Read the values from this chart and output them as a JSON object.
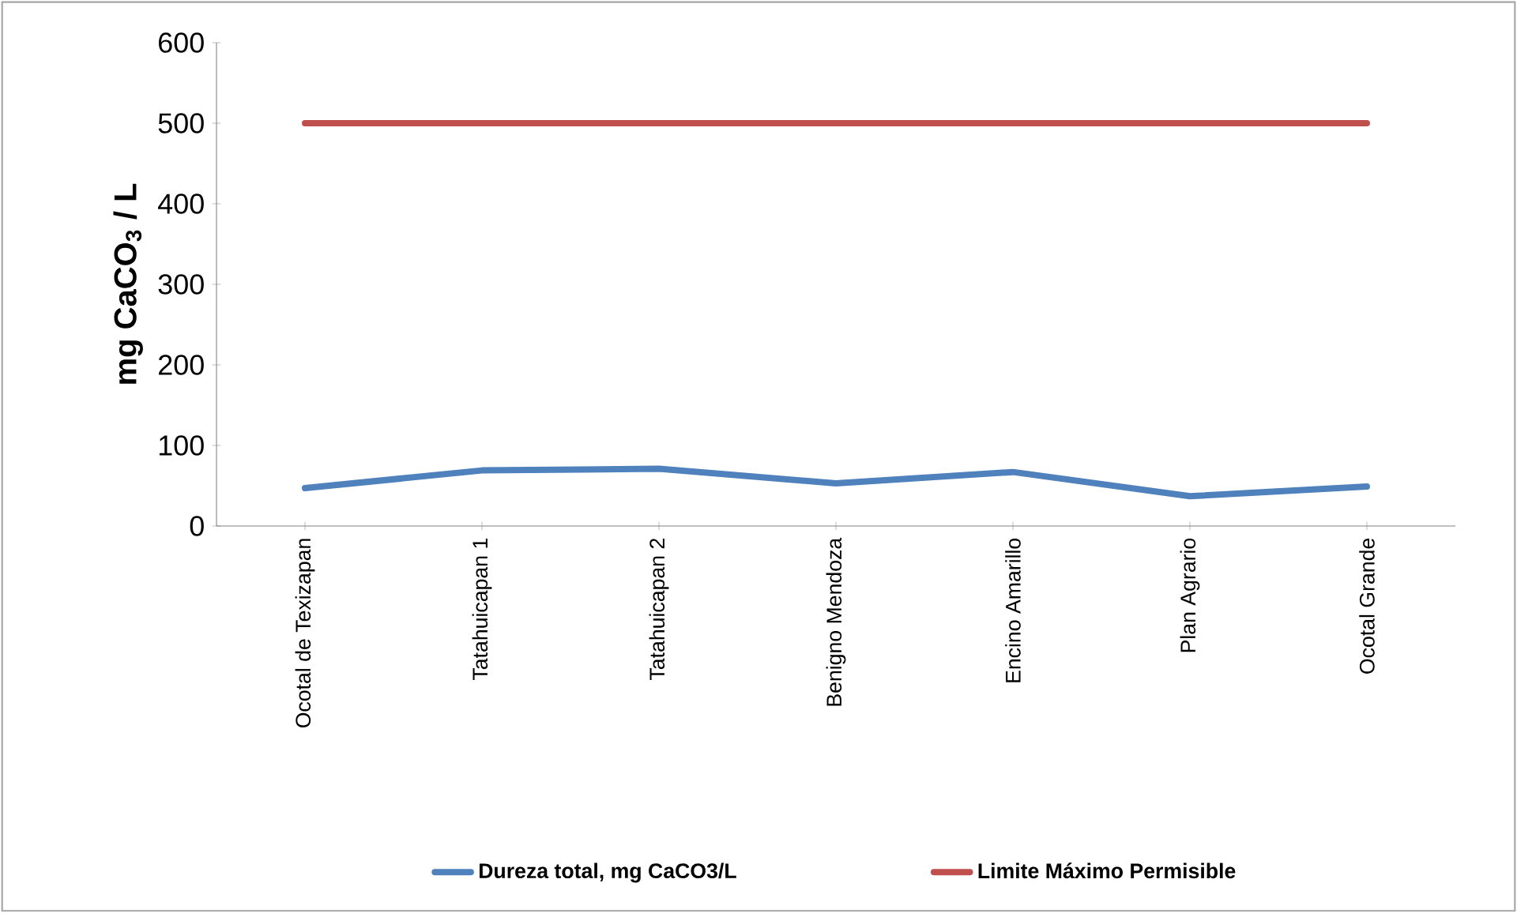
{
  "chart_data": {
    "type": "line",
    "ylabel": "mg CaCO$_{3}$ / L",
    "categories": [
      "Ocotal de Texizapan",
      "Tatahuicapan 1",
      "Tatahuicapan  2",
      "Benigno Mendoza",
      "Encino Amarillo",
      "Plan Agrario",
      "Ocotal Grande"
    ],
    "series": [
      {
        "name": "Dureza total, mg CaCO3/L",
        "color": "#4f81bd",
        "values": [
          47,
          69,
          71,
          53,
          67,
          37,
          49
        ]
      },
      {
        "name": "Limite Máximo Permisible",
        "color": "#c0504d",
        "values": [
          500,
          500,
          500,
          500,
          500,
          500,
          500
        ]
      }
    ],
    "ylim": [
      0,
      600
    ],
    "yticks": [
      0,
      100,
      200,
      300,
      400,
      500,
      600
    ],
    "grid": false,
    "legend": "bottom",
    "marker": "none",
    "line_style": "solid"
  }
}
